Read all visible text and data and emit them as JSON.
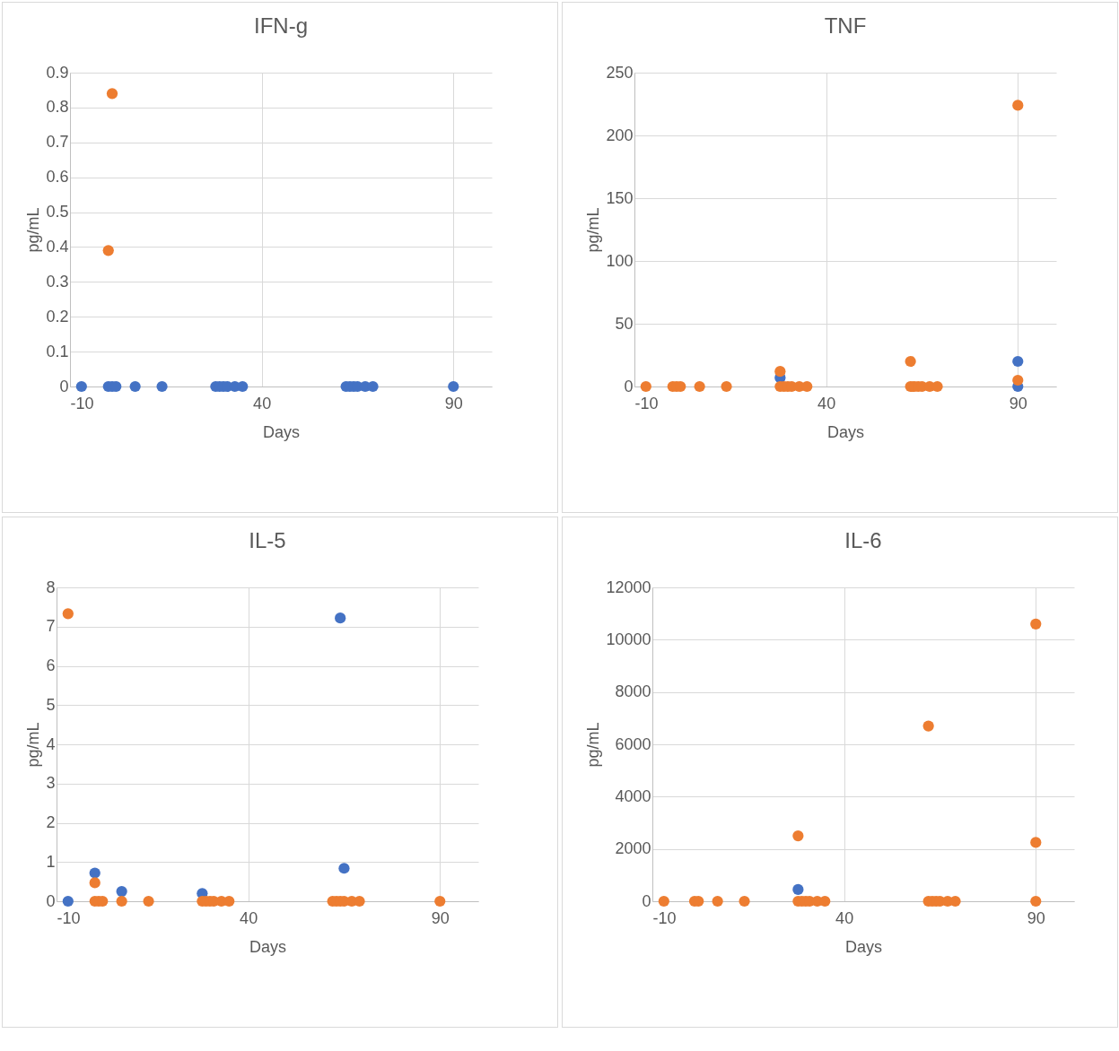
{
  "chart_data": [
    {
      "type": "scatter",
      "title": "IFN-g",
      "xlabel": "Days",
      "ylabel": "pg/mL",
      "xlim": [
        -10,
        100
      ],
      "xticks": [
        -10,
        40,
        90
      ],
      "ylim": [
        0,
        0.9
      ],
      "yticks": [
        0,
        0.1,
        0.2,
        0.3,
        0.4,
        0.5,
        0.6,
        0.7,
        0.8,
        0.9
      ],
      "grid": true,
      "marker": "circle",
      "series": [
        {
          "color": "#ed7d31",
          "x": [
            0,
            1
          ],
          "values": [
            0.39,
            0.84
          ]
        },
        {
          "color": "#4472c4",
          "x": [
            -7,
            0,
            1,
            2,
            7,
            14,
            28,
            29,
            30,
            31,
            33,
            35,
            62,
            63,
            64,
            65,
            67,
            69,
            90
          ],
          "values": [
            0,
            0,
            0,
            0,
            0,
            0,
            0,
            0,
            0,
            0,
            0,
            0,
            0,
            0,
            0,
            0,
            0,
            0,
            0
          ]
        }
      ]
    },
    {
      "type": "scatter",
      "title": "TNF",
      "xlabel": "Days",
      "ylabel": "pg/mL",
      "xlim": [
        -10,
        100
      ],
      "xticks": [
        -10,
        40,
        90
      ],
      "ylim": [
        0,
        250
      ],
      "yticks": [
        0,
        50,
        100,
        150,
        200,
        250
      ],
      "grid": true,
      "marker": "circle",
      "series": [
        {
          "color": "#4472c4",
          "x": [
            28,
            90,
            90
          ],
          "values": [
            7,
            20,
            0
          ]
        },
        {
          "color": "#ed7d31",
          "x": [
            -7,
            0,
            1,
            2,
            7,
            14,
            28,
            28,
            29,
            30,
            31,
            33,
            35,
            62,
            62,
            63,
            64,
            65,
            67,
            69,
            90,
            90
          ],
          "values": [
            0,
            0,
            0,
            0,
            0,
            0,
            12,
            0,
            0,
            0,
            0,
            0,
            0,
            20,
            0,
            0,
            0,
            0,
            0,
            0,
            224,
            5
          ]
        }
      ]
    },
    {
      "type": "scatter",
      "title": "IL-5",
      "xlabel": "Days",
      "ylabel": "pg/mL",
      "xlim": [
        -10,
        100
      ],
      "xticks": [
        -10,
        40,
        90
      ],
      "ylim": [
        0,
        8
      ],
      "yticks": [
        0,
        1,
        2,
        3,
        4,
        5,
        6,
        7,
        8
      ],
      "grid": true,
      "marker": "circle",
      "series": [
        {
          "color": "#4472c4",
          "x": [
            -7,
            0,
            7,
            28,
            64,
            65
          ],
          "values": [
            0,
            0.72,
            0.25,
            0.2,
            7.22,
            0.84
          ]
        },
        {
          "color": "#ed7d31",
          "x": [
            -7,
            0,
            0,
            1,
            2,
            7,
            14,
            28,
            29,
            30,
            31,
            33,
            35,
            62,
            63,
            64,
            65,
            67,
            69,
            90
          ],
          "values": [
            7.33,
            0.47,
            0,
            0,
            0,
            0,
            0,
            0,
            0,
            0,
            0,
            0,
            0,
            0,
            0,
            0,
            0,
            0,
            0,
            0
          ]
        }
      ]
    },
    {
      "type": "scatter",
      "title": "IL-6",
      "xlabel": "Days",
      "ylabel": "pg/mL",
      "xlim": [
        -10,
        100
      ],
      "xticks": [
        -10,
        40,
        90
      ],
      "ylim": [
        0,
        12000
      ],
      "yticks": [
        0,
        2000,
        4000,
        6000,
        8000,
        10000,
        12000
      ],
      "grid": true,
      "marker": "circle",
      "series": [
        {
          "color": "#4472c4",
          "x": [
            28
          ],
          "values": [
            450
          ]
        },
        {
          "color": "#ed7d31",
          "x": [
            -7,
            1,
            2,
            7,
            14,
            28,
            28,
            29,
            30,
            31,
            33,
            35,
            62,
            62,
            63,
            64,
            65,
            67,
            69,
            90,
            90,
            90
          ],
          "values": [
            0,
            0,
            0,
            0,
            0,
            2500,
            0,
            0,
            0,
            0,
            0,
            0,
            6700,
            0,
            0,
            0,
            0,
            0,
            0,
            10600,
            2250,
            0
          ]
        }
      ]
    }
  ]
}
